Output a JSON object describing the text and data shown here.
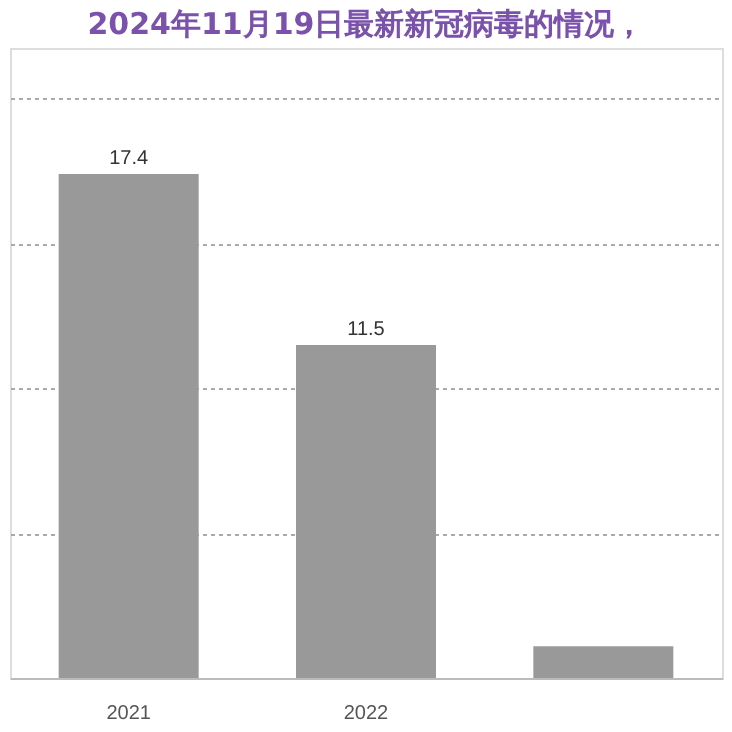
{
  "chart_data": {
    "type": "bar",
    "title": "2024年11月19日最新新冠病毒的情况，",
    "categories": [
      "2021",
      "2022",
      null
    ],
    "values": [
      17.4,
      11.5,
      1.1
    ],
    "value_labels": [
      "17.4",
      "11.5",
      null
    ],
    "tick_labels": "x",
    "color": "#999999",
    "grid": "y"
  }
}
